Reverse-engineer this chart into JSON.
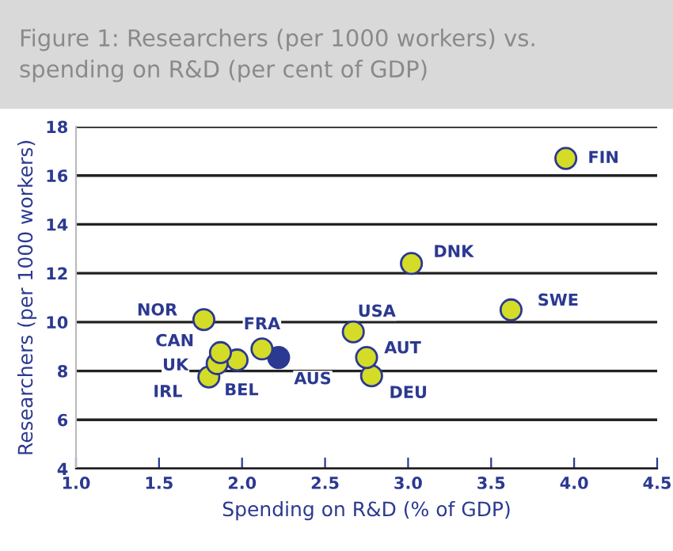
{
  "chart_data": {
    "type": "scatter",
    "title": "Figure 1: Researchers (per 1000 workers) vs.\nspending on R&D (per cent of GDP)",
    "xlabel": "Spending on R&D (% of GDP)",
    "ylabel": "Researchers (per 1000 workers)",
    "x": [
      1.77,
      1.87,
      1.85,
      1.8,
      1.97,
      2.12,
      2.22,
      2.67,
      2.75,
      2.78,
      3.02,
      3.62,
      3.95
    ],
    "values": [
      10.1,
      8.75,
      8.3,
      7.75,
      8.45,
      8.9,
      8.55,
      9.6,
      8.55,
      7.8,
      12.4,
      10.5,
      16.7
    ],
    "colors": [
      "#d4dc28",
      "#d4dc28",
      "#d4dc28",
      "#d4dc28",
      "#d4dc28",
      "#d4dc28",
      "#2b3990",
      "#d4dc28",
      "#d4dc28",
      "#d4dc28",
      "#d4dc28",
      "#d4dc28",
      "#d4dc28"
    ],
    "annotations": [
      {
        "text": "NOR",
        "x": 1.77,
        "y": 10.1
      },
      {
        "text": "CAN",
        "x": 1.87,
        "y": 8.75
      },
      {
        "text": "UK",
        "x": 1.85,
        "y": 8.3
      },
      {
        "text": "IRL",
        "x": 1.8,
        "y": 7.75
      },
      {
        "text": "BEL",
        "x": 1.97,
        "y": 8.45
      },
      {
        "text": "FRA",
        "x": 2.12,
        "y": 8.9
      },
      {
        "text": "AUS",
        "x": 2.22,
        "y": 8.55
      },
      {
        "text": "USA",
        "x": 2.67,
        "y": 9.6
      },
      {
        "text": "AUT",
        "x": 2.75,
        "y": 8.55
      },
      {
        "text": "DEU",
        "x": 2.78,
        "y": 7.8
      },
      {
        "text": "DNK",
        "x": 3.02,
        "y": 12.4
      },
      {
        "text": "SWE",
        "x": 3.62,
        "y": 10.5
      },
      {
        "text": "FIN",
        "x": 3.95,
        "y": 16.7
      }
    ],
    "xlim": [
      1.0,
      4.5
    ],
    "xticks": [
      {
        "value": 1.0,
        "label": "1.0"
      },
      {
        "value": 1.5,
        "label": "1.5"
      },
      {
        "value": 2.0,
        "label": "2.0"
      },
      {
        "value": 2.5,
        "label": "2.5"
      },
      {
        "value": 3.0,
        "label": "3.0"
      },
      {
        "value": 3.5,
        "label": "3.5"
      },
      {
        "value": 4.0,
        "label": "4.0"
      },
      {
        "value": 4.5,
        "label": "4.5"
      }
    ],
    "ylim": [
      4,
      18
    ],
    "yticks": [
      4,
      6,
      8,
      10,
      12,
      14,
      16,
      18
    ],
    "grid": "y",
    "marker": "circle"
  }
}
